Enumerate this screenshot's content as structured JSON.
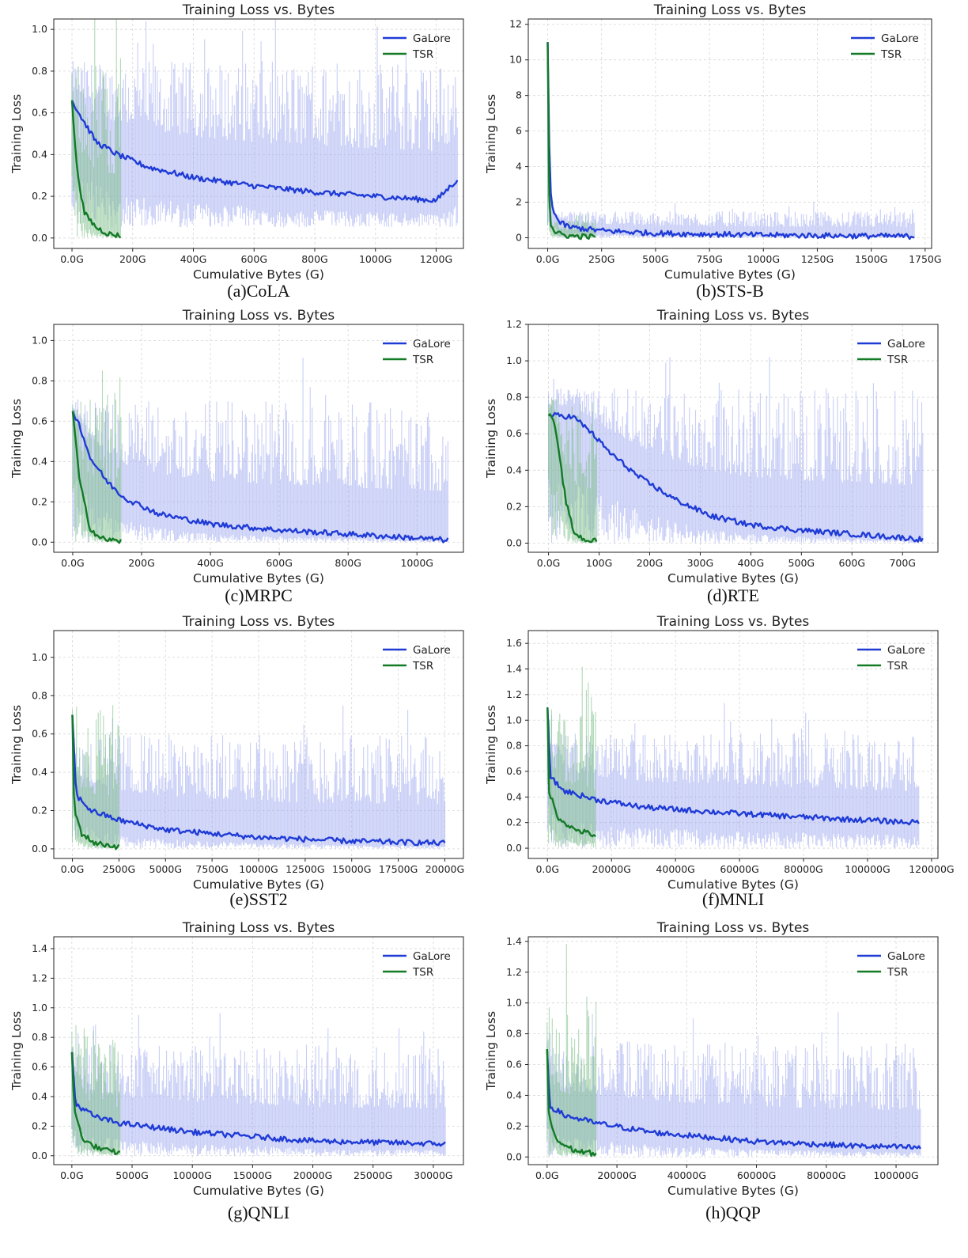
{
  "colors": {
    "galore": "#1f3bd6",
    "galore_band": "#9aa6ee",
    "tsr": "#137a26",
    "tsr_band": "#7fbf8a",
    "grid": "#d6d6d6"
  },
  "chart_data": [
    {
      "type": "line",
      "caption": "(a)CoLA",
      "title": "Training Loss vs. Bytes",
      "xlabel": "Cumulative Bytes (G)",
      "ylabel": "Training Loss",
      "xlim": [
        -60,
        1290
      ],
      "ylim": [
        -0.05,
        1.05
      ],
      "xticks": [
        0,
        200,
        400,
        600,
        800,
        1000,
        1200
      ],
      "xtick_labels": [
        "0.0G",
        "200G",
        "400G",
        "600G",
        "800G",
        "1000G",
        "1200G"
      ],
      "yticks": [
        0,
        0.2,
        0.4,
        0.6,
        0.8,
        1.0
      ],
      "ytick_labels": [
        "0.0",
        "0.2",
        "0.4",
        "0.6",
        "0.8",
        "1.0"
      ],
      "legend": "top-right",
      "grid": true,
      "series": [
        {
          "name": "GaLore",
          "x": [
            0,
            30,
            80,
            150,
            250,
            400,
            600,
            800,
            1000,
            1200,
            1270
          ],
          "y": [
            0.66,
            0.58,
            0.46,
            0.4,
            0.34,
            0.29,
            0.25,
            0.22,
            0.2,
            0.18,
            0.28
          ],
          "band": [
            0.05,
            0.85
          ]
        },
        {
          "name": "TSR",
          "x": [
            0,
            15,
            40,
            80,
            120,
            160
          ],
          "y": [
            0.66,
            0.35,
            0.12,
            0.05,
            0.02,
            0.01
          ],
          "band": [
            0.0,
            0.85
          ]
        }
      ]
    },
    {
      "type": "line",
      "caption": "(b)STS-B",
      "title": "Training Loss vs. Bytes",
      "xlabel": "Cumulative Bytes (G)",
      "ylabel": "Training Loss",
      "xlim": [
        -90,
        1780
      ],
      "ylim": [
        -0.6,
        12.3
      ],
      "xticks": [
        0,
        250,
        500,
        750,
        1000,
        1250,
        1500,
        1750
      ],
      "xtick_labels": [
        "0.0G",
        "250G",
        "500G",
        "750G",
        "1000G",
        "1250G",
        "1500G",
        "1750G"
      ],
      "yticks": [
        0,
        2,
        4,
        6,
        8,
        10,
        12
      ],
      "ytick_labels": [
        "0",
        "2",
        "4",
        "6",
        "8",
        "10",
        "12"
      ],
      "legend": "top-right",
      "grid": true,
      "series": [
        {
          "name": "GaLore",
          "x": [
            0,
            10,
            20,
            50,
            100,
            250,
            500,
            1000,
            1500,
            1700
          ],
          "y": [
            11.0,
            3.0,
            1.8,
            0.9,
            0.6,
            0.4,
            0.25,
            0.15,
            0.1,
            0.08
          ],
          "band": [
            0.0,
            1.5
          ]
        },
        {
          "name": "TSR",
          "x": [
            0,
            5,
            15,
            40,
            100,
            220
          ],
          "y": [
            11.0,
            3.0,
            0.7,
            0.25,
            0.1,
            0.05
          ],
          "band": [
            0.0,
            1.0
          ]
        }
      ]
    },
    {
      "type": "line",
      "caption": "(c)MRPC",
      "title": "Training Loss vs. Bytes",
      "xlabel": "Cumulative Bytes (G)",
      "ylabel": "Training Loss",
      "xlim": [
        -55,
        1135
      ],
      "ylim": [
        -0.05,
        1.08
      ],
      "xticks": [
        0,
        200,
        400,
        600,
        800,
        1000
      ],
      "xtick_labels": [
        "0.0G",
        "200G",
        "400G",
        "600G",
        "800G",
        "1000G"
      ],
      "yticks": [
        0,
        0.2,
        0.4,
        0.6,
        0.8,
        1.0
      ],
      "ytick_labels": [
        "0.0",
        "0.2",
        "0.4",
        "0.6",
        "0.8",
        "1.0"
      ],
      "legend": "top-right",
      "grid": true,
      "series": [
        {
          "name": "GaLore",
          "x": [
            0,
            20,
            50,
            100,
            150,
            250,
            400,
            600,
            800,
            1000,
            1090
          ],
          "y": [
            0.65,
            0.58,
            0.42,
            0.3,
            0.22,
            0.14,
            0.09,
            0.06,
            0.04,
            0.02,
            0.01
          ],
          "band": [
            0.0,
            0.7
          ]
        },
        {
          "name": "TSR",
          "x": [
            0,
            20,
            50,
            80,
            110,
            140
          ],
          "y": [
            0.65,
            0.3,
            0.07,
            0.02,
            0.01,
            0.005
          ],
          "band": [
            0.0,
            0.75
          ]
        }
      ]
    },
    {
      "type": "line",
      "caption": "(d)RTE",
      "title": "Training Loss vs. Bytes",
      "xlabel": "Cumulative Bytes (G)",
      "ylabel": "Training Loss",
      "xlim": [
        -40,
        770
      ],
      "ylim": [
        -0.05,
        1.2
      ],
      "xticks": [
        0,
        100,
        200,
        300,
        400,
        500,
        600,
        700
      ],
      "xtick_labels": [
        "0.0G",
        "100G",
        "200G",
        "300G",
        "400G",
        "500G",
        "600G",
        "700G"
      ],
      "yticks": [
        0,
        0.2,
        0.4,
        0.6,
        0.8,
        1.0,
        1.2
      ],
      "ytick_labels": [
        "0.0",
        "0.2",
        "0.4",
        "0.6",
        "0.8",
        "1.0",
        "1.2"
      ],
      "legend": "top-right",
      "grid": true,
      "series": [
        {
          "name": "GaLore",
          "x": [
            0,
            25,
            50,
            80,
            120,
            180,
            250,
            320,
            400,
            500,
            600,
            700,
            740
          ],
          "y": [
            0.7,
            0.7,
            0.69,
            0.62,
            0.5,
            0.36,
            0.24,
            0.15,
            0.1,
            0.07,
            0.05,
            0.03,
            0.02
          ],
          "band": [
            0.0,
            0.85
          ]
        },
        {
          "name": "TSR",
          "x": [
            0,
            10,
            20,
            35,
            50,
            70,
            95
          ],
          "y": [
            0.7,
            0.68,
            0.5,
            0.22,
            0.06,
            0.02,
            0.01
          ],
          "band": [
            0.0,
            0.8
          ]
        }
      ]
    },
    {
      "type": "line",
      "caption": "(e)SST2",
      "title": "Training Loss vs. Bytes",
      "xlabel": "Cumulative Bytes (G)",
      "ylabel": "Training Loss",
      "xlim": [
        -1000,
        21000
      ],
      "ylim": [
        -0.05,
        1.14
      ],
      "xticks": [
        0,
        2500,
        5000,
        7500,
        10000,
        12500,
        15000,
        17500,
        20000
      ],
      "xtick_labels": [
        "0.0G",
        "2500G",
        "5000G",
        "7500G",
        "10000G",
        "12500G",
        "15000G",
        "17500G",
        "20000G"
      ],
      "yticks": [
        0,
        0.2,
        0.4,
        0.6,
        0.8,
        1.0
      ],
      "ytick_labels": [
        "0.0",
        "0.2",
        "0.4",
        "0.6",
        "0.8",
        "1.0"
      ],
      "legend": "top-right",
      "grid": true,
      "series": [
        {
          "name": "GaLore",
          "x": [
            0,
            200,
            1000,
            2500,
            5000,
            10000,
            15000,
            20000
          ],
          "y": [
            0.7,
            0.28,
            0.2,
            0.15,
            0.1,
            0.06,
            0.04,
            0.03
          ],
          "band": [
            0.0,
            0.6
          ]
        },
        {
          "name": "TSR",
          "x": [
            0,
            100,
            500,
            1200,
            2500
          ],
          "y": [
            0.7,
            0.2,
            0.08,
            0.03,
            0.01
          ],
          "band": [
            0.0,
            0.75
          ]
        }
      ]
    },
    {
      "type": "line",
      "caption": "(f)MNLI",
      "title": "Training Loss vs. Bytes",
      "xlabel": "Cumulative Bytes (G)",
      "ylabel": "Training Loss",
      "xlim": [
        -6000,
        122000
      ],
      "ylim": [
        -0.08,
        1.7
      ],
      "xticks": [
        0,
        20000,
        40000,
        60000,
        80000,
        100000,
        120000
      ],
      "xtick_labels": [
        "0.0G",
        "20000G",
        "40000G",
        "60000G",
        "80000G",
        "100000G",
        "120000G"
      ],
      "yticks": [
        0,
        0.2,
        0.4,
        0.6,
        0.8,
        1.0,
        1.2,
        1.4,
        1.6
      ],
      "ytick_labels": [
        "0.0",
        "0.2",
        "0.4",
        "0.6",
        "0.8",
        "1.0",
        "1.2",
        "1.4",
        "1.6"
      ],
      "legend": "top-right",
      "grid": true,
      "series": [
        {
          "name": "GaLore",
          "x": [
            0,
            1000,
            5000,
            15000,
            30000,
            60000,
            90000,
            116000
          ],
          "y": [
            1.1,
            0.55,
            0.45,
            0.38,
            0.32,
            0.27,
            0.23,
            0.2
          ],
          "band": [
            0.0,
            0.9
          ]
        },
        {
          "name": "TSR",
          "x": [
            0,
            500,
            3000,
            8000,
            15000
          ],
          "y": [
            1.1,
            0.45,
            0.25,
            0.15,
            0.1
          ],
          "band": [
            0.0,
            1.1
          ]
        }
      ]
    },
    {
      "type": "line",
      "caption": "(g)QNLI",
      "title": "Training Loss vs. Bytes",
      "xlabel": "Cumulative Bytes (G)",
      "ylabel": "Training Loss",
      "xlim": [
        -1500,
        32500
      ],
      "ylim": [
        -0.06,
        1.48
      ],
      "xticks": [
        0,
        5000,
        10000,
        15000,
        20000,
        25000,
        30000
      ],
      "xtick_labels": [
        "0.0G",
        "5000G",
        "10000G",
        "15000G",
        "20000G",
        "25000G",
        "30000G"
      ],
      "yticks": [
        0,
        0.2,
        0.4,
        0.6,
        0.8,
        1.0,
        1.2,
        1.4
      ],
      "ytick_labels": [
        "0.0",
        "0.2",
        "0.4",
        "0.6",
        "0.8",
        "1.0",
        "1.2",
        "1.4"
      ],
      "legend": "top-right",
      "grid": true,
      "series": [
        {
          "name": "GaLore",
          "x": [
            0,
            300,
            2000,
            4000,
            10000,
            20000,
            31000
          ],
          "y": [
            0.7,
            0.35,
            0.26,
            0.22,
            0.16,
            0.1,
            0.08
          ],
          "band": [
            0.0,
            0.75
          ]
        },
        {
          "name": "TSR",
          "x": [
            0,
            200,
            1000,
            2500,
            4000
          ],
          "y": [
            0.7,
            0.3,
            0.1,
            0.04,
            0.02
          ],
          "band": [
            0.0,
            0.9
          ]
        }
      ]
    },
    {
      "type": "line",
      "caption": "(h)QQP",
      "title": "Training Loss vs. Bytes",
      "xlabel": "Cumulative Bytes (G)",
      "ylabel": "Training Loss",
      "xlim": [
        -5400,
        112000
      ],
      "ylim": [
        -0.05,
        1.43
      ],
      "xticks": [
        0,
        20000,
        40000,
        60000,
        80000,
        100000
      ],
      "xtick_labels": [
        "0.0G",
        "20000G",
        "40000G",
        "60000G",
        "80000G",
        "100000G"
      ],
      "yticks": [
        0,
        0.2,
        0.4,
        0.6,
        0.8,
        1.0,
        1.2,
        1.4
      ],
      "ytick_labels": [
        "0.0",
        "0.2",
        "0.4",
        "0.6",
        "0.8",
        "1.0",
        "1.2",
        "1.4"
      ],
      "legend": "top-right",
      "grid": true,
      "series": [
        {
          "name": "GaLore",
          "x": [
            0,
            800,
            5000,
            14000,
            30000,
            60000,
            90000,
            107000
          ],
          "y": [
            0.7,
            0.33,
            0.27,
            0.22,
            0.16,
            0.1,
            0.07,
            0.06
          ],
          "band": [
            0.0,
            0.75
          ]
        },
        {
          "name": "TSR",
          "x": [
            0,
            500,
            3000,
            8000,
            14000
          ],
          "y": [
            0.7,
            0.25,
            0.1,
            0.04,
            0.02
          ],
          "band": [
            0.0,
            1.05
          ]
        }
      ]
    }
  ]
}
